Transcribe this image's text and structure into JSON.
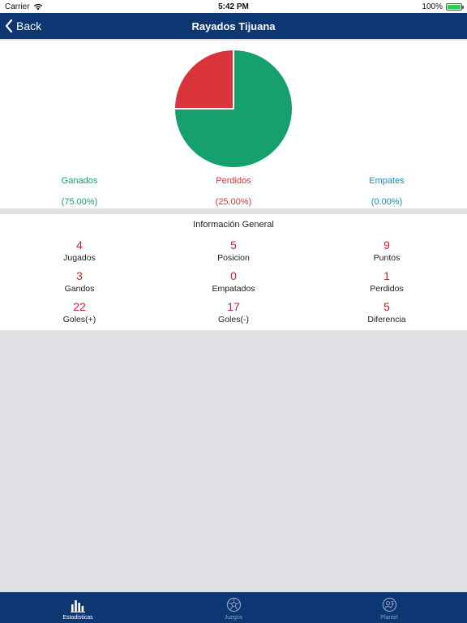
{
  "status_bar": {
    "carrier": "Carrier",
    "time": "5:42 PM",
    "battery": "100%",
    "battery_level": 1.0
  },
  "nav": {
    "back_label": "Back",
    "title": "Rayados Tijuana"
  },
  "chart_data": {
    "type": "pie",
    "title": "",
    "slices": [
      {
        "name": "Ganados",
        "value": 75.0,
        "color": "#16a06e"
      },
      {
        "name": "Perdidos",
        "value": 25.0,
        "color": "#d9343c"
      },
      {
        "name": "Empates",
        "value": 0.0,
        "color": "#1a8bb8"
      }
    ]
  },
  "legend": [
    {
      "label": "Ganados",
      "percent": "(75.00%)",
      "color": "#16a06e"
    },
    {
      "label": "Perdidos",
      "percent": "(25.00%)",
      "color": "#d9343c"
    },
    {
      "label": "Empates",
      "percent": "(0.00%)",
      "color": "#1a8bb8"
    }
  ],
  "info": {
    "title": "Información General",
    "stats": [
      {
        "value": "4",
        "caption": "Jugados"
      },
      {
        "value": "5",
        "caption": "Posicion"
      },
      {
        "value": "9",
        "caption": "Puntos"
      },
      {
        "value": "3",
        "caption": "Gandos"
      },
      {
        "value": "0",
        "caption": "Empatados"
      },
      {
        "value": "1",
        "caption": "Perdidos"
      },
      {
        "value": "22",
        "caption": "Goles(+)"
      },
      {
        "value": "17",
        "caption": "Goles(-)"
      },
      {
        "value": "5",
        "caption": "Diferencia"
      }
    ]
  },
  "tabs": [
    {
      "label": "Estadisticas",
      "icon": "bar-chart-icon",
      "active": true
    },
    {
      "label": "Juegos",
      "icon": "soccer-ball-icon",
      "active": false
    },
    {
      "label": "Plantel",
      "icon": "team-badge-icon",
      "active": false
    }
  ]
}
